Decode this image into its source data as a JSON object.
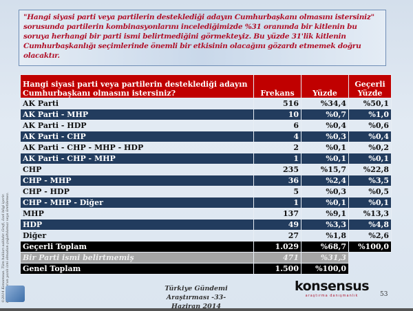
{
  "intro": "\"Hangi siyasi parti veya partilerin desteklediği adayın Cumhurbaşkanı olmasını istersiniz\" sorusunda partilerin kombinasyonlarını incelediğimizde %31 oranında bir kitlenin bu soruya herhangi bir parti ismi belirtmediğini görmekteyiz. Bu yüzde 31'lik kitlenin Cumhurbaşkanlığı seçimlerinde önemli bir etkisinin olacağını gözardı etmemek doğru olacaktır.",
  "table": {
    "headers": {
      "question": "Hangi siyasi parti veya partilerin desteklediği adayın Cumhurbaşkanı olmasını istersiniz?",
      "freq": "Frekans",
      "pct": "Yüzde",
      "valid1": "Geçerli",
      "valid2": "Yüzde"
    },
    "rows": [
      {
        "label": "AK Parti",
        "freq": "516",
        "pct": "%34,4",
        "valid": "%50,1"
      },
      {
        "label": "AK Parti - MHP",
        "freq": "10",
        "pct": "%0,7",
        "valid": "%1,0"
      },
      {
        "label": "AK Parti - HDP",
        "freq": "6",
        "pct": "%0,4",
        "valid": "%0,6"
      },
      {
        "label": "AK Parti - CHP",
        "freq": "4",
        "pct": "%0,3",
        "valid": "%0,4"
      },
      {
        "label": "AK Parti - CHP - MHP - HDP",
        "freq": "2",
        "pct": "%0,1",
        "valid": "%0,2"
      },
      {
        "label": "AK Parti - CHP - MHP",
        "freq": "1",
        "pct": "%0,1",
        "valid": "%0,1"
      },
      {
        "label": "CHP",
        "freq": "235",
        "pct": "%15,7",
        "valid": "%22,8"
      },
      {
        "label": "CHP - MHP",
        "freq": "36",
        "pct": "%2,4",
        "valid": "%3,5"
      },
      {
        "label": "CHP - HDP",
        "freq": "5",
        "pct": "%0,3",
        "valid": "%0,5"
      },
      {
        "label": "CHP - MHP - Diğer",
        "freq": "1",
        "pct": "%0,1",
        "valid": "%0,1"
      },
      {
        "label": "MHP",
        "freq": "137",
        "pct": "%9,1",
        "valid": "%13,3"
      },
      {
        "label": "HDP",
        "freq": "49",
        "pct": "%3,3",
        "valid": "%4,8"
      },
      {
        "label": "Diğer",
        "freq": "27",
        "pct": "%1,8",
        "valid": "%2,6"
      },
      {
        "label": "Geçerli Toplam",
        "freq": "1.029",
        "pct": "%68,7",
        "valid": "%100,0"
      },
      {
        "label": "Bir Parti ismi belirtmemiş",
        "freq": "471",
        "pct": "%31,3",
        "valid": ""
      },
      {
        "label": "Genel Toplam",
        "freq": "1.500",
        "pct": "%100,0",
        "valid": ""
      }
    ]
  },
  "copyright": "©2014 Konsensus. Tüm hakları saklıdır. Grafi, özel bilgi içerir. Konsensus'un yazılı izni olmadan çoğaltılamaz veya üretilemez.",
  "footer": {
    "line1": "Türkiye Gündemi Araştırması -33-",
    "line2": "Haziran 2014",
    "logo": "konsensus",
    "logo_sub": "araştırma danışmanlık",
    "page": "53"
  }
}
